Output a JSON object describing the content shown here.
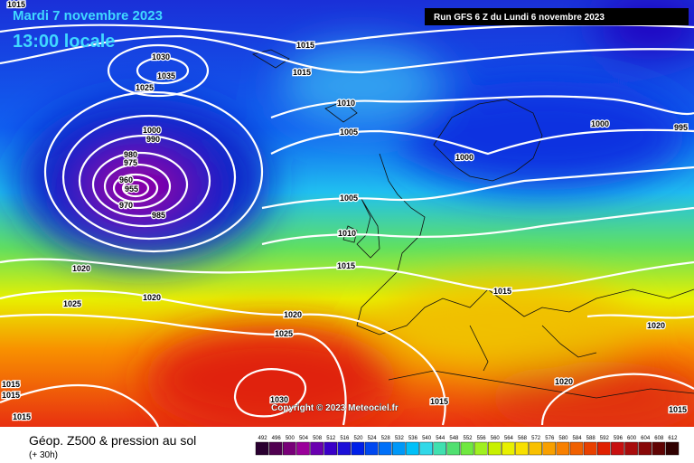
{
  "header": {
    "date": "Mardi 7 novembre 2023",
    "time": "13:00 locale",
    "run": "Run GFS 6 Z du Lundi 6 novembre 2023"
  },
  "footer": {
    "title": "Géop. Z500 & pression au sol",
    "lead": "(+ 30h)",
    "copyright": "Copyright © 2023 Meteociel.fr"
  },
  "isobar_labels": [
    "1015",
    "1015",
    "1030",
    "1035",
    "1025",
    "1015",
    "1010",
    "1005",
    "1000",
    "990",
    "980",
    "975",
    "960",
    "955",
    "970",
    "985",
    "1000",
    "1000",
    "995",
    "1005",
    "1010",
    "1015",
    "1020",
    "1020",
    "1025",
    "1015",
    "1020",
    "1025",
    "1020",
    "1020",
    "1015",
    "1015",
    "1015",
    "1030",
    "1015",
    "1015"
  ],
  "scale": {
    "labels": [
      492,
      496,
      500,
      504,
      508,
      512,
      516,
      520,
      524,
      528,
      532,
      536,
      540,
      544,
      548,
      552,
      556,
      560,
      564,
      568,
      572,
      576,
      580,
      584,
      588,
      592,
      596,
      600,
      604,
      608,
      612
    ],
    "colors": [
      "#2a0030",
      "#500050",
      "#780078",
      "#9a009a",
      "#6a00b0",
      "#3a00c8",
      "#1c10d8",
      "#0020e8",
      "#0048f0",
      "#0070f8",
      "#0098f8",
      "#00c0f8",
      "#30d8e8",
      "#40e0b0",
      "#50e070",
      "#70e840",
      "#a0f020",
      "#c8f000",
      "#e8f000",
      "#f8e000",
      "#f8c000",
      "#f8a000",
      "#f88000",
      "#f06000",
      "#e84000",
      "#e02000",
      "#c81010",
      "#a80c0c",
      "#880808",
      "#600404",
      "#300000"
    ]
  }
}
